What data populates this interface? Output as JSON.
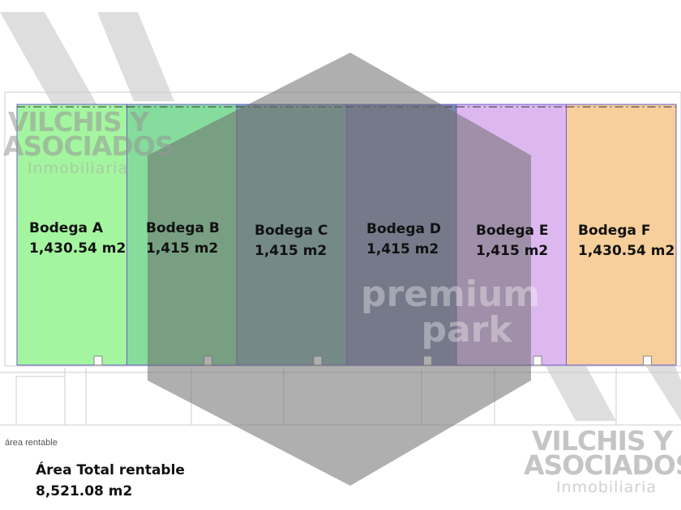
{
  "bodegas": [
    {
      "name": "Bodega A",
      "area": "1,430.54 m2",
      "color": "#a4f5a0"
    },
    {
      "name": "Bodega B",
      "area": "1,415 m2",
      "color": "#86dc9c"
    },
    {
      "name": "Bodega C",
      "area": "1,415 m2",
      "color": "#7faaa6"
    },
    {
      "name": "Bodega D",
      "area": "1,415 m2",
      "color": "#8088aa"
    },
    {
      "name": "Bodega E",
      "area": "1,415 m2",
      "color": "#ddb8ef"
    },
    {
      "name": "Bodega F",
      "area": "1,430.54 m2",
      "color": "#f6cf9a"
    }
  ],
  "plan_caption": "área rentable",
  "total": {
    "label": "Área Total rentable",
    "value": "8,521.08 m2"
  },
  "watermark": {
    "line1": "VILCHIS Y",
    "line2": "ASOCIADOS",
    "line3": "Inmobiliaria"
  },
  "center_logo": {
    "line1": "premium",
    "line2": "park"
  }
}
